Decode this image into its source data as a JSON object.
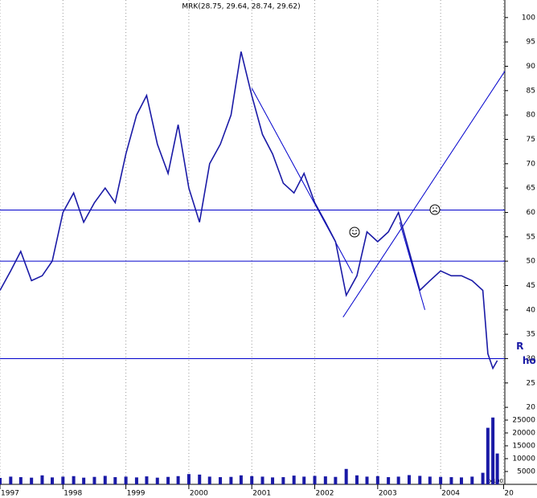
{
  "chart_data": {
    "type": "line",
    "title": "MRK(28.75, 29.64, 28.74, 29.62)",
    "x": [
      1997.0,
      1997.17,
      1997.33,
      1997.5,
      1997.67,
      1997.83,
      1998.0,
      1998.17,
      1998.33,
      1998.5,
      1998.67,
      1998.83,
      1999.0,
      1999.17,
      1999.33,
      1999.5,
      1999.67,
      1999.83,
      2000.0,
      2000.17,
      2000.33,
      2000.5,
      2000.67,
      2000.83,
      2001.0,
      2001.17,
      2001.33,
      2001.5,
      2001.67,
      2001.83,
      2002.0,
      2002.17,
      2002.33,
      2002.5,
      2002.67,
      2002.83,
      2003.0,
      2003.17,
      2003.33,
      2003.5,
      2003.67,
      2003.83,
      2004.0,
      2004.17,
      2004.33,
      2004.5,
      2004.67,
      2004.75,
      2004.83,
      2004.9
    ],
    "series": [
      {
        "name": "MRK",
        "color": "#1a1aa6",
        "values": [
          44,
          48,
          52,
          46,
          47,
          50,
          60,
          64,
          58,
          62,
          65,
          62,
          72,
          80,
          84,
          74,
          68,
          78,
          65,
          58,
          70,
          74,
          80,
          93,
          84,
          76,
          72,
          66,
          64,
          68,
          62,
          58,
          54,
          43,
          47,
          56,
          54,
          56,
          60,
          52,
          44,
          46,
          48,
          47,
          47,
          46,
          44,
          31,
          28,
          29.6
        ]
      },
      {
        "name": "Volume",
        "color": "#1a1aa6",
        "axis": "y2",
        "values": [
          2500,
          3000,
          2800,
          2600,
          3500,
          2700,
          3000,
          3200,
          2600,
          2900,
          3300,
          2800,
          3000,
          2700,
          3100,
          2600,
          2900,
          3200,
          4000,
          3800,
          3000,
          2800,
          2900,
          3500,
          3200,
          3000,
          2700,
          2800,
          3400,
          3000,
          3300,
          3100,
          2900,
          6000,
          3500,
          3000,
          3200,
          2800,
          3000,
          3600,
          3300,
          3000,
          2900,
          2800,
          2700,
          3000,
          4500,
          22000,
          26000,
          12000
        ]
      }
    ],
    "xlim": [
      1997,
      2005.02
    ],
    "xticks": [
      1997,
      1998,
      1999,
      2000,
      2001,
      2002,
      2003,
      2004,
      {
        "value": 2005,
        "label": "20"
      }
    ],
    "ylim": [
      18.7,
      103.6
    ],
    "yticks": [
      20,
      25,
      30,
      35,
      40,
      45,
      50,
      55,
      60,
      65,
      70,
      75,
      80,
      85,
      90,
      95,
      100
    ],
    "y2lim": [
      0,
      35000
    ],
    "y2ticks": [
      5000,
      10000,
      15000,
      20000,
      25000
    ],
    "y2unit": "x100",
    "grid": true,
    "hlines": [
      60.5,
      50,
      30
    ],
    "trendlines": [
      [
        2001.0,
        85.5,
        2002.6,
        47.5
      ],
      [
        2002.45,
        38.5,
        2005.02,
        89
      ],
      [
        2003.35,
        58,
        2003.75,
        40
      ]
    ],
    "annotations": [
      {
        "text": "R",
        "x": 2005.2,
        "y": 32.5
      },
      {
        "text": "ho",
        "x": 2005.3,
        "y": 29.5
      }
    ]
  }
}
